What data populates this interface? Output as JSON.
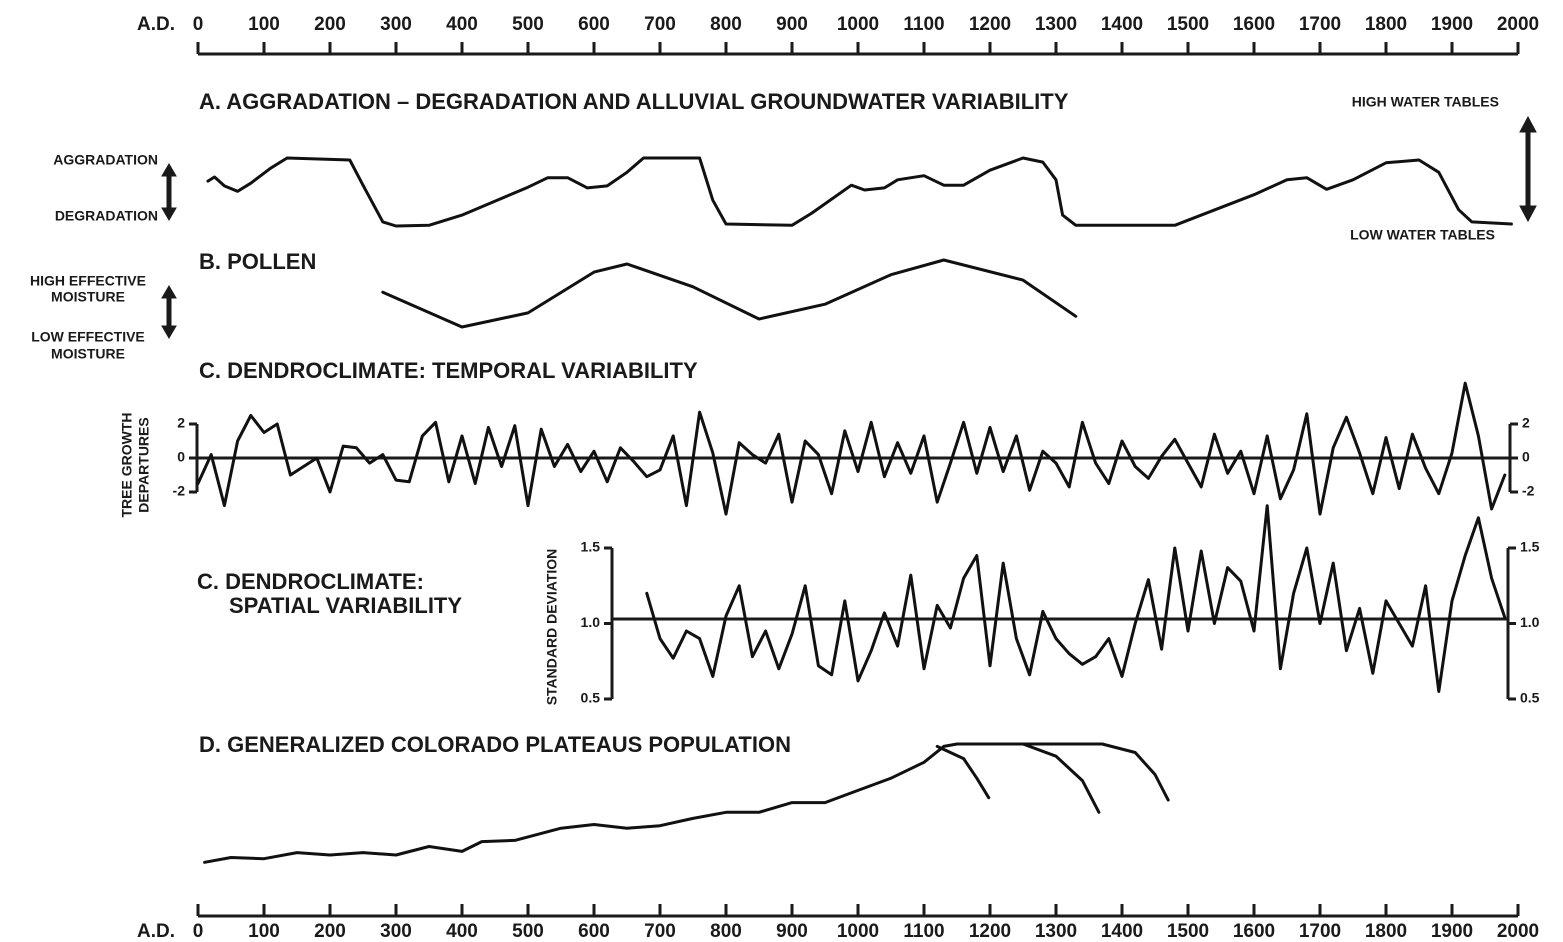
{
  "chart_data": [
    {
      "type": "line",
      "xlabel": "A.D.",
      "xlim": [
        0,
        2000
      ],
      "xticks": [
        0,
        100,
        200,
        300,
        400,
        500,
        600,
        700,
        800,
        900,
        1000,
        1100,
        1200,
        1300,
        1400,
        1500,
        1600,
        1700,
        1800,
        1900,
        2000
      ],
      "title": "A. AGGRADATION – DEGRADATION AND ALLUVIAL GROUNDWATER VARIABILITY",
      "left_labels": [
        "AGGRADATION",
        "DEGRADATION"
      ],
      "right_labels": [
        "HIGH WATER TABLES",
        "LOW WATER TABLES"
      ],
      "ylim": [
        0,
        1
      ],
      "color": "#111111",
      "x": [
        15,
        25,
        40,
        60,
        80,
        110,
        135,
        230,
        250,
        280,
        300,
        350,
        400,
        500,
        530,
        560,
        590,
        620,
        650,
        675,
        760,
        780,
        800,
        900,
        930,
        990,
        1010,
        1040,
        1060,
        1100,
        1130,
        1160,
        1200,
        1250,
        1280,
        1300,
        1310,
        1330,
        1480,
        1600,
        1650,
        1680,
        1710,
        1750,
        1800,
        1850,
        1880,
        1910,
        1930,
        1990
      ],
      "values": [
        0.66,
        0.72,
        0.59,
        0.51,
        0.63,
        0.85,
        1.0,
        0.97,
        0.6,
        0.06,
        0,
        0.01,
        0.16,
        0.57,
        0.71,
        0.71,
        0.56,
        0.59,
        0.79,
        1.0,
        1.0,
        0.38,
        0.03,
        0.01,
        0.19,
        0.6,
        0.53,
        0.56,
        0.68,
        0.74,
        0.6,
        0.6,
        0.82,
        1.0,
        0.94,
        0.68,
        0.16,
        0.01,
        0.01,
        0.46,
        0.68,
        0.71,
        0.54,
        0.68,
        0.93,
        0.97,
        0.79,
        0.24,
        0.06,
        0.03
      ]
    },
    {
      "type": "line",
      "xlim": [
        0,
        2000
      ],
      "title": "B. POLLEN",
      "left_labels": [
        [
          "HIGH EFFECTIVE",
          "MOISTURE"
        ],
        [
          "LOW EFFECTIVE",
          "MOISTURE"
        ]
      ],
      "ylim": [
        0,
        1
      ],
      "color": "#111111",
      "x": [
        280,
        400,
        500,
        600,
        650,
        750,
        850,
        950,
        1050,
        1130,
        1250,
        1330
      ],
      "values": [
        0.52,
        0,
        0.21,
        0.82,
        0.94,
        0.6,
        0.12,
        0.34,
        0.78,
        1.0,
        0.7,
        0.16
      ]
    },
    {
      "type": "line",
      "xlim": [
        0,
        2000
      ],
      "title": "C. DENDROCLIMATE: TEMPORAL VARIABILITY",
      "ylabel": [
        "TREE GROWTH",
        "DEPARTURES"
      ],
      "ylim": [
        -2,
        2
      ],
      "yticks": [
        -2,
        0,
        2
      ],
      "reference_line": 0,
      "color": "#111111",
      "x": [
        0,
        20,
        40,
        60,
        80,
        100,
        120,
        140,
        160,
        180,
        200,
        220,
        240,
        260,
        280,
        300,
        320,
        340,
        360,
        380,
        400,
        420,
        440,
        460,
        480,
        500,
        520,
        540,
        560,
        580,
        600,
        620,
        640,
        660,
        680,
        700,
        720,
        740,
        760,
        780,
        800,
        820,
        840,
        860,
        880,
        900,
        920,
        940,
        960,
        980,
        1000,
        1020,
        1040,
        1060,
        1080,
        1100,
        1120,
        1140,
        1160,
        1180,
        1200,
        1220,
        1240,
        1260,
        1280,
        1300,
        1320,
        1340,
        1360,
        1380,
        1400,
        1420,
        1440,
        1460,
        1480,
        1500,
        1520,
        1540,
        1560,
        1580,
        1600,
        1620,
        1640,
        1660,
        1680,
        1700,
        1720,
        1740,
        1760,
        1780,
        1800,
        1820,
        1840,
        1860,
        1880,
        1900,
        1920,
        1940,
        1960,
        1980
      ],
      "values": [
        -1.5,
        0.2,
        -2.8,
        1,
        2.5,
        1.5,
        2,
        -1,
        -0.5,
        0,
        -2,
        0.7,
        0.6,
        -0.3,
        0.2,
        -1.3,
        -1.4,
        1.3,
        2.1,
        -1.4,
        1.3,
        -1.5,
        1.8,
        -0.5,
        1.9,
        -2.8,
        1.7,
        -0.5,
        0.8,
        -0.8,
        0.4,
        -1.4,
        0.6,
        -0.2,
        -1.1,
        -0.7,
        1.3,
        -2.8,
        2.7,
        0.3,
        -3.3,
        0.9,
        0.2,
        -0.3,
        1.4,
        -2.6,
        1,
        0.2,
        -2.1,
        1.6,
        -0.8,
        2.1,
        -1.1,
        0.9,
        -0.9,
        1.3,
        -2.6,
        -0.3,
        2.1,
        -0.9,
        1.8,
        -0.8,
        1.3,
        -1.9,
        0.4,
        -0.3,
        -1.7,
        2.1,
        -0.3,
        -1.5,
        1,
        -0.5,
        -1.2,
        0.1,
        1.1,
        -0.3,
        -1.7,
        1.4,
        -0.9,
        0.4,
        -2.1,
        1.3,
        -2.4,
        -0.7,
        2.6,
        -3.3,
        0.6,
        2.4,
        0.3,
        -2.1,
        1.2,
        -1.8,
        1.4,
        -0.6,
        -2.1,
        0.3,
        4.4,
        1.3,
        -3,
        -1
      ]
    },
    {
      "type": "line",
      "xlim": [
        0,
        2000
      ],
      "title": [
        "C. DENDROCLIMATE:",
        "SPATIAL VARIABILITY"
      ],
      "ylabel": "STANDARD DEVIATION",
      "ylim": [
        0.5,
        1.5
      ],
      "yticks": [
        0.5,
        {
          "value": 1,
          "label": "1.0"
        },
        1.5
      ],
      "reference_line": 1.03,
      "color": "#111111",
      "x": [
        680,
        700,
        720,
        740,
        760,
        780,
        800,
        820,
        840,
        860,
        880,
        900,
        920,
        940,
        960,
        980,
        1000,
        1020,
        1040,
        1060,
        1080,
        1100,
        1120,
        1140,
        1160,
        1180,
        1200,
        1220,
        1240,
        1260,
        1280,
        1300,
        1320,
        1340,
        1360,
        1380,
        1400,
        1420,
        1440,
        1460,
        1480,
        1500,
        1520,
        1540,
        1560,
        1580,
        1600,
        1620,
        1640,
        1660,
        1680,
        1700,
        1720,
        1740,
        1760,
        1780,
        1800,
        1820,
        1840,
        1860,
        1880,
        1900,
        1920,
        1940,
        1960,
        1980
      ],
      "values": [
        1.2,
        0.9,
        0.77,
        0.95,
        0.9,
        0.65,
        1.05,
        1.25,
        0.78,
        0.95,
        0.7,
        0.93,
        1.25,
        0.72,
        0.66,
        1.15,
        0.62,
        0.82,
        1.07,
        0.85,
        1.32,
        0.7,
        1.12,
        0.97,
        1.3,
        1.45,
        0.72,
        1.4,
        0.9,
        0.66,
        1.08,
        0.9,
        0.8,
        0.73,
        0.78,
        0.9,
        0.65,
        1.0,
        1.29,
        0.83,
        1.5,
        0.95,
        1.48,
        1.0,
        1.37,
        1.28,
        0.95,
        1.78,
        0.7,
        1.2,
        1.5,
        1.0,
        1.4,
        0.82,
        1.1,
        0.67,
        1.15,
        1.0,
        0.85,
        1.25,
        0.55,
        1.15,
        1.45,
        1.7,
        1.3,
        1.04
      ]
    },
    {
      "type": "line",
      "xlabel": "A.D.",
      "xlim": [
        0,
        2000
      ],
      "xticks": [
        0,
        100,
        200,
        300,
        400,
        500,
        600,
        700,
        800,
        900,
        1000,
        1100,
        1200,
        1300,
        1400,
        1500,
        1600,
        1700,
        1800,
        1900,
        2000
      ],
      "title": "D. GENERALIZED COLORADO PLATEAUS POPULATION",
      "ylim": [
        0,
        1
      ],
      "color": "#111111",
      "x": [
        10,
        50,
        100,
        150,
        200,
        250,
        300,
        350,
        400,
        430,
        480,
        550,
        600,
        650,
        700,
        750,
        800,
        850,
        900,
        950,
        1000,
        1050,
        1100,
        1130,
        1150,
        1370
      ],
      "values": [
        0.03,
        0.07,
        0.06,
        0.11,
        0.09,
        0.11,
        0.09,
        0.16,
        0.12,
        0.2,
        0.21,
        0.31,
        0.34,
        0.31,
        0.33,
        0.39,
        0.44,
        0.44,
        0.52,
        0.52,
        0.62,
        0.72,
        0.85,
        0.98,
        1.0,
        1.0
      ],
      "branches": [
        {
          "x": [
            1120,
            1160,
            1180,
            1198
          ],
          "values": [
            0.98,
            0.88,
            0.72,
            0.56
          ]
        },
        {
          "x": [
            1250,
            1300,
            1340,
            1365
          ],
          "values": [
            1.0,
            0.9,
            0.7,
            0.44
          ]
        },
        {
          "x": [
            1370,
            1420,
            1450,
            1470
          ],
          "values": [
            1.0,
            0.93,
            0.75,
            0.54
          ]
        }
      ]
    }
  ]
}
